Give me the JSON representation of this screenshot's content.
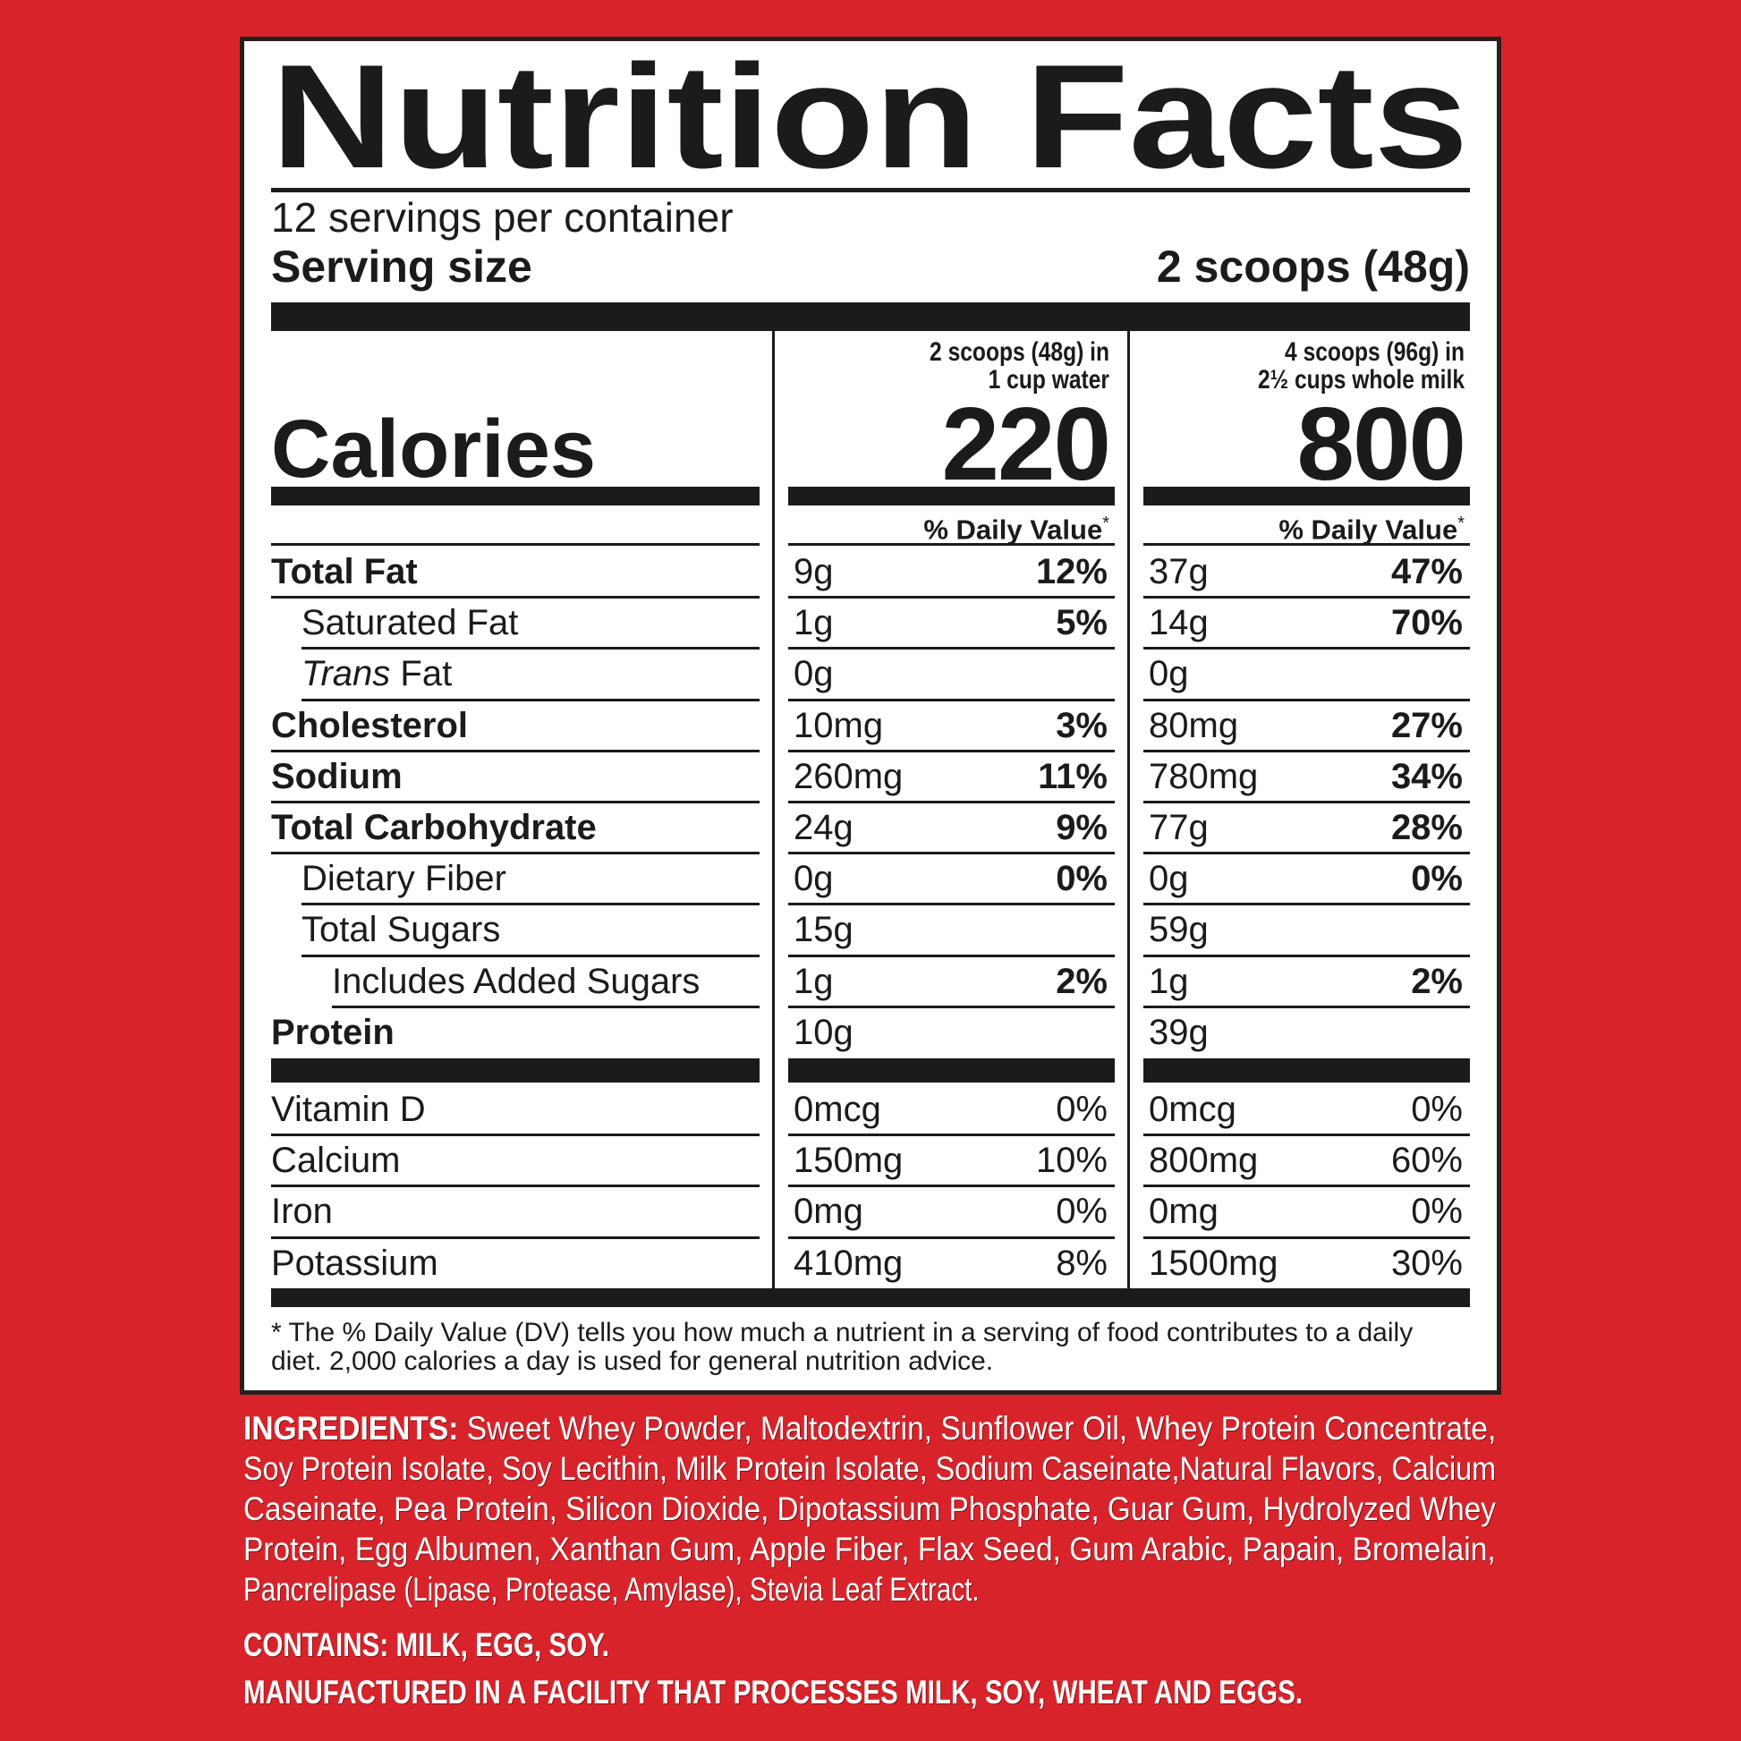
{
  "colors": {
    "background": "#d9232a",
    "label_ink": "#1c1a1a",
    "label_bg": "#ffffff"
  },
  "label": {
    "title": "Nutrition Facts",
    "servings_per_container": "12 servings per container",
    "serving_size_label": "Serving size",
    "serving_size_value": "2 scoops (48g)",
    "calories_label": "Calories",
    "columns": [
      {
        "header_line1": "2 scoops (48g) in",
        "header_line2": "1 cup water",
        "calories": "220",
        "dv_header": "% Daily Value",
        "dv_mark": "*"
      },
      {
        "header_line1": "4 scoops (96g) in",
        "header_line2": "2½ cups whole milk",
        "calories": "800",
        "dv_header": "% Daily Value",
        "dv_mark": "*"
      }
    ],
    "nutrients": [
      {
        "label": "Total Fat",
        "bold": true,
        "indent": 0,
        "water_amount": "9g",
        "water_dv": "12%",
        "milk_amount": "37g",
        "milk_dv": "47%"
      },
      {
        "label": "Saturated Fat",
        "bold": false,
        "indent": 1,
        "water_amount": "1g",
        "water_dv": "5%",
        "milk_amount": "14g",
        "milk_dv": "70%"
      },
      {
        "italic_prefix": "Trans",
        "label": " Fat",
        "bold": false,
        "indent": 1,
        "water_amount": "0g",
        "water_dv": "",
        "milk_amount": "0g",
        "milk_dv": ""
      },
      {
        "label": "Cholesterol",
        "bold": true,
        "indent": 0,
        "water_amount": "10mg",
        "water_dv": "3%",
        "milk_amount": "80mg",
        "milk_dv": "27%"
      },
      {
        "label": "Sodium",
        "bold": true,
        "indent": 0,
        "water_amount": "260mg",
        "water_dv": "11%",
        "milk_amount": "780mg",
        "milk_dv": "34%"
      },
      {
        "label": "Total Carbohydrate",
        "bold": true,
        "indent": 0,
        "water_amount": "24g",
        "water_dv": "9%",
        "milk_amount": "77g",
        "milk_dv": "28%"
      },
      {
        "label": "Dietary Fiber",
        "bold": false,
        "indent": 1,
        "water_amount": "0g",
        "water_dv": "0%",
        "milk_amount": "0g",
        "milk_dv": "0%"
      },
      {
        "label": "Total Sugars",
        "bold": false,
        "indent": 1,
        "water_amount": "15g",
        "water_dv": "",
        "milk_amount": "59g",
        "milk_dv": ""
      },
      {
        "label": "Includes Added Sugars",
        "bold": false,
        "indent": 2,
        "water_amount": "1g",
        "water_dv": "2%",
        "milk_amount": "1g",
        "milk_dv": "2%"
      },
      {
        "label": "Protein",
        "bold": true,
        "indent": 0,
        "water_amount": "10g",
        "water_dv": "",
        "milk_amount": "39g",
        "milk_dv": ""
      }
    ],
    "vitamins": [
      {
        "label": "Vitamin D",
        "water_amount": "0mcg",
        "water_dv": "0%",
        "milk_amount": "0mcg",
        "milk_dv": "0%"
      },
      {
        "label": "Calcium",
        "water_amount": "150mg",
        "water_dv": "10%",
        "milk_amount": "800mg",
        "milk_dv": "60%"
      },
      {
        "label": "Iron",
        "water_amount": "0mg",
        "water_dv": "0%",
        "milk_amount": "0mg",
        "milk_dv": "0%"
      },
      {
        "label": "Potassium",
        "water_amount": "410mg",
        "water_dv": "8%",
        "milk_amount": "1500mg",
        "milk_dv": "30%"
      }
    ],
    "footnote_lines": [
      "* The % Daily Value (DV) tells you how much a nutrient in a serving of food contributes to a daily",
      "diet. 2,000 calories a day is used for general nutrition advice."
    ]
  },
  "ingredients": {
    "label": "INGREDIENTS:",
    "lines": [
      " Sweet Whey Powder, Maltodextrin, Sunflower Oil, Whey Protein Concentrate,",
      "Soy Protein Isolate, Soy Lecithin, Milk Protein Isolate, Sodium Caseinate,Natural Flavors, Calcium",
      "Caseinate, Pea Protein, Silicon Dioxide, Dipotassium Phosphate, Guar Gum, Hydrolyzed Whey",
      "Protein, Egg Albumen, Xanthan Gum, Apple Fiber, Flax Seed, Gum Arabic, Papain, Bromelain,",
      "Pancrelipase (Lipase, Protease, Amylase), Stevia Leaf Extract."
    ],
    "contains": "CONTAINS: MILK, EGG, SOY.",
    "facility": "MANUFACTURED IN A FACILITY THAT PROCESSES MILK, SOY, WHEAT AND EGGS."
  }
}
